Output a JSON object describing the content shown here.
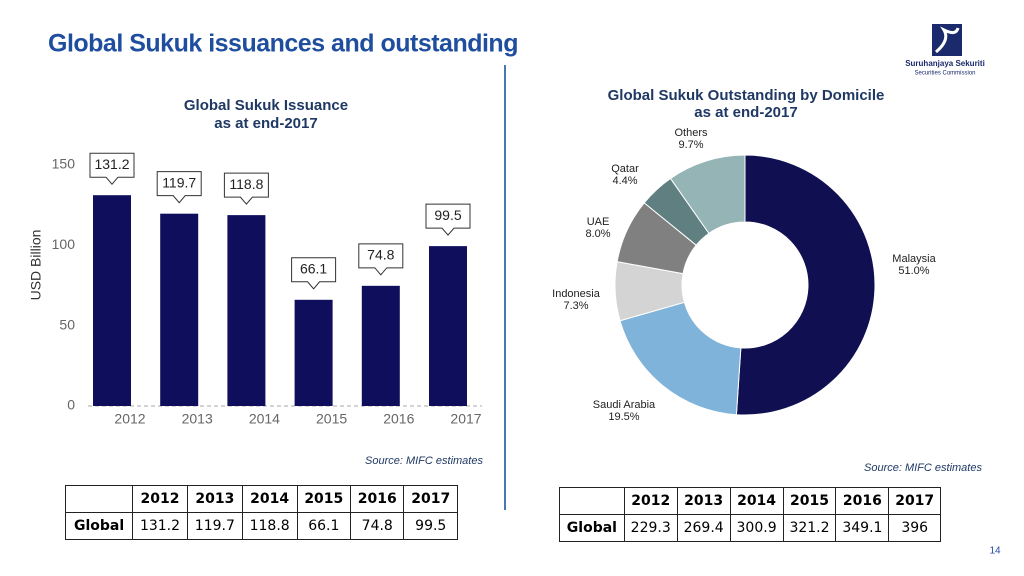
{
  "title": "Global Sukuk issuances and outstanding",
  "logo": {
    "name": "Suruhanjaya Sekuriti",
    "subtitle": "Securities Commission"
  },
  "chart_data": [
    {
      "type": "bar",
      "title": "Global Sukuk Issuance",
      "subtitle": "as at end-2017",
      "categories": [
        "2012",
        "2013",
        "2014",
        "2015",
        "2016",
        "2017"
      ],
      "values": [
        131.2,
        119.7,
        118.8,
        66.1,
        74.8,
        99.5
      ],
      "color": "#0e0e5c",
      "ylabel": "USD Billion",
      "ylim": [
        0,
        150
      ],
      "yticks": [
        0,
        50,
        100,
        150
      ],
      "source": "Source: MIFC estimates"
    },
    {
      "type": "pie",
      "title": "Global Sukuk Outstanding by Domicile",
      "subtitle": "as at end-2017",
      "categories": [
        "Malaysia",
        "Saudi Arabia",
        "Indonesia",
        "UAE",
        "Qatar",
        "Others"
      ],
      "values": [
        51.0,
        19.5,
        7.3,
        8.0,
        4.4,
        9.7
      ],
      "value_labels": [
        "51.0%",
        "19.5%",
        "7.3%",
        "8.0%",
        "4.4%",
        "9.7%"
      ],
      "colors": [
        "#0f0f52",
        "#7fb3d9",
        "#d4d4d4",
        "#808080",
        "#5f7f80",
        "#94b4b6"
      ],
      "source": "Source: MIFC estimates"
    }
  ],
  "tables": [
    {
      "columns": [
        "2012",
        "2013",
        "2014",
        "2015",
        "2016",
        "2017"
      ],
      "row_label": "Global",
      "values": [
        131.2,
        119.7,
        118.8,
        66.1,
        74.8,
        99.5
      ]
    },
    {
      "columns": [
        "2012",
        "2013",
        "2014",
        "2015",
        "2016",
        "2017"
      ],
      "row_label": "Global",
      "values": [
        229.3,
        269.4,
        300.9,
        321.2,
        349.1,
        396
      ]
    }
  ],
  "page_number": "14"
}
